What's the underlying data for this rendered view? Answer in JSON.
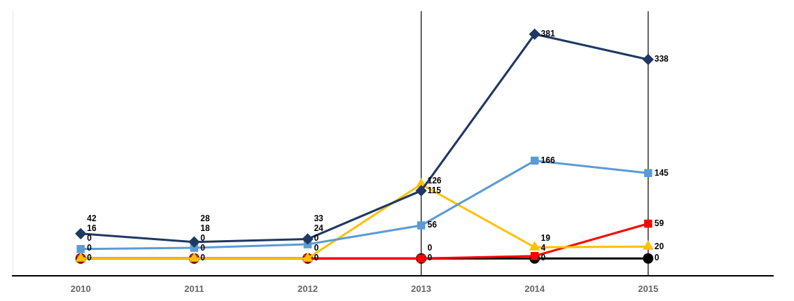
{
  "chart_data": {
    "type": "line",
    "x": [
      2010,
      2011,
      2012,
      2013,
      2014,
      2015
    ],
    "xlim": [
      2009.4,
      2016.1
    ],
    "xticks": [
      2010,
      2011,
      2012,
      2013,
      2014,
      2015
    ],
    "ylim": [
      -30,
      420
    ],
    "tick_labels": "x",
    "grid": false,
    "data_labels": true,
    "vlines": [
      2013,
      2015
    ],
    "series": [
      {
        "color": "#1F3864",
        "marker": "diamond",
        "values": [
          42,
          28,
          33,
          115,
          381,
          338
        ]
      },
      {
        "color": "#5B9BD5",
        "marker": "square",
        "values": [
          16,
          18,
          24,
          56,
          166,
          145
        ]
      },
      {
        "color": "#FFC000",
        "marker": "triangle",
        "values": [
          0,
          0,
          0,
          126,
          19,
          20
        ]
      },
      {
        "color": "#FF0000",
        "marker": "square",
        "values": [
          0,
          0,
          0,
          0,
          4,
          59
        ]
      },
      {
        "color": "#000000",
        "marker": "circle",
        "values": [
          0,
          0,
          0,
          0,
          0,
          0
        ]
      }
    ]
  }
}
